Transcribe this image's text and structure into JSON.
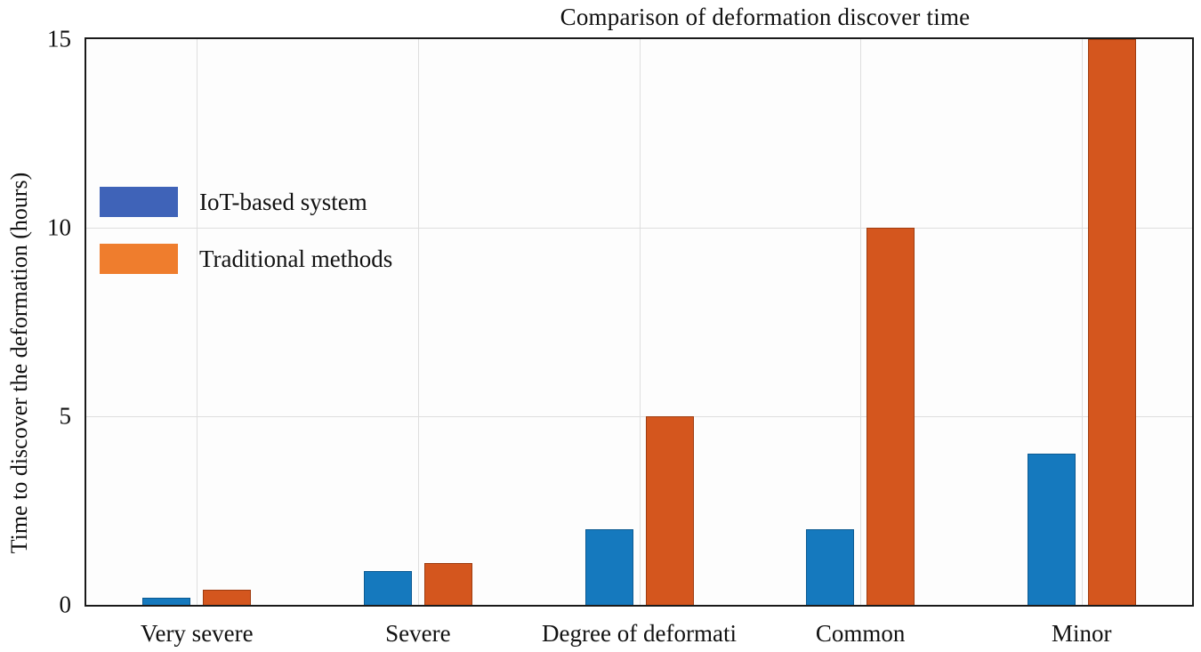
{
  "figure": {
    "background_color": "#ffffff",
    "axis_color": "#1a1a1a",
    "gridline_color": "#dedede"
  },
  "chart_data": {
    "type": "bar",
    "title": "Comparison of deformation discover time",
    "xlabel": "",
    "ylabel": "Time to discover the deformation (hours)",
    "categories": [
      "Very severe",
      "Severe",
      "Degree of deformati",
      "Common",
      "Minor"
    ],
    "series": [
      {
        "name": "IoT-based system",
        "color": "#1579be",
        "edge_color": "#0c5a92",
        "legend_color": "#3f63b8",
        "values": [
          0.2,
          0.9,
          2,
          2,
          4
        ]
      },
      {
        "name": "Traditional methods",
        "color": "#d4561e",
        "edge_color": "#9e3c10",
        "legend_color": "#ef7d2d",
        "values": [
          0.4,
          1.1,
          5,
          10,
          15
        ]
      }
    ],
    "ylim": [
      0,
      15
    ],
    "yticks": [
      0,
      5,
      10,
      15
    ],
    "grid": true,
    "legend_position": "upper-left-inside"
  }
}
